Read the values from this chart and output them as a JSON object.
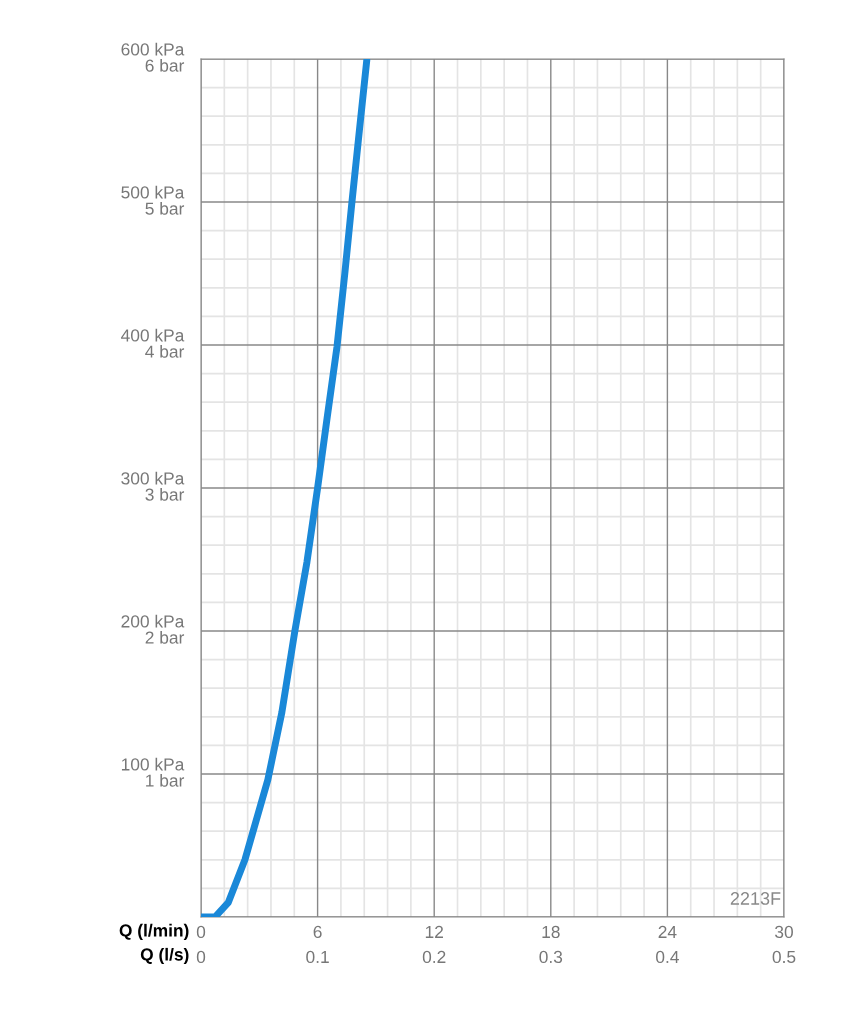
{
  "chart_data": {
    "type": "line",
    "xlabel": "Q (l/min)",
    "x2label": "Q (l/s)",
    "x": [
      0,
      0.72,
      1.4,
      2.26,
      3.44,
      4.16,
      4.83,
      5.45,
      6.0,
      6.5,
      7.0,
      7.4,
      7.76,
      8.15,
      8.53
    ],
    "series": [
      {
        "color": "#1a88d8",
        "values": [
          0,
          0,
          10,
          40,
          96,
          143,
          200,
          248,
          300,
          350,
          399,
          450,
          499,
          550,
          599
        ]
      }
    ],
    "xlim": [
      0,
      30
    ],
    "ylim": [
      0,
      600
    ],
    "xticks": [
      0,
      6,
      12,
      18,
      24,
      30
    ],
    "x2lim": [
      0,
      0.5
    ],
    "x2ticks": [
      0,
      0.1,
      0.2,
      0.3,
      0.4,
      0.5
    ],
    "yticks": [
      {
        "value": 0,
        "label": null
      },
      {
        "value": 100,
        "label": "100 kPa"
      },
      {
        "value": 200,
        "label": "200 kPa"
      },
      {
        "value": 300,
        "label": "300 kPa"
      },
      {
        "value": 400,
        "label": "400 kPa"
      },
      {
        "value": 500,
        "label": "500 kPa"
      },
      {
        "value": 600,
        "label": "600 kPa"
      }
    ],
    "y2lim": [
      0,
      6
    ],
    "y2ticks": [
      {
        "value": 0,
        "label": null
      },
      {
        "value": 1,
        "label": "1 bar"
      },
      {
        "value": 2,
        "label": "2 bar"
      },
      {
        "value": 3,
        "label": "3 bar"
      },
      {
        "value": 4,
        "label": "4 bar"
      },
      {
        "value": 5,
        "label": "5 bar"
      },
      {
        "value": 6,
        "label": "6 bar"
      }
    ],
    "grid": true,
    "annotations": [
      "2213F"
    ]
  }
}
